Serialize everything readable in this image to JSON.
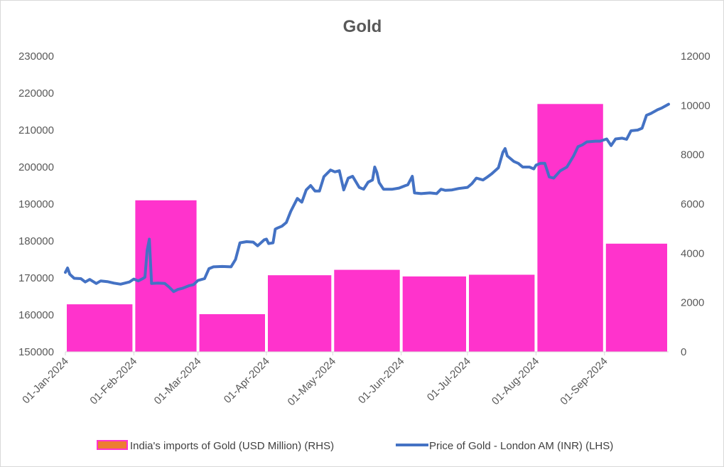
{
  "chart_data": {
    "type": "bar+line",
    "title": "Gold",
    "xlabel": "",
    "ylabel_left": "",
    "ylabel_right": "",
    "x_ticks": [
      "01-Jan-2024",
      "01-Feb-2024",
      "01-Mar-2024",
      "01-Apr-2024",
      "01-May-2024",
      "01-Jun-2024",
      "01-Jul-2024",
      "01-Aug-2024",
      "01-Sep-2024"
    ],
    "y_left": {
      "min": 150000,
      "max": 230000,
      "step": 10000,
      "ticks": [
        "150000",
        "160000",
        "170000",
        "180000",
        "190000",
        "200000",
        "210000",
        "220000",
        "230000"
      ]
    },
    "y_right": {
      "min": 0,
      "max": 12000,
      "step": 2000,
      "ticks": [
        "0",
        "2000",
        "4000",
        "6000",
        "8000",
        "10000",
        "12000"
      ]
    },
    "grid": false,
    "legend_position": "bottom",
    "colors": {
      "bars": "#ff33cc",
      "line": "#4472c4",
      "legend_bar_fill": "#ed7d31",
      "axis": "#d9d9d9"
    },
    "bar_series": {
      "name": "India's imports of Gold (USD Million) (RHS)",
      "axis": "right",
      "categories": [
        "Jan-2024",
        "Feb-2024",
        "Mar-2024",
        "Apr-2024",
        "May-2024",
        "Jun-2024",
        "Jul-2024",
        "Aug-2024",
        "Sep-2024"
      ],
      "values": [
        1930,
        6150,
        1530,
        3110,
        3330,
        3060,
        3130,
        10060,
        4390
      ]
    },
    "line_series": {
      "name": "Price of Gold - London AM (INR) (LHS)",
      "axis": "left",
      "points": [
        [
          "2024-01-01",
          171500
        ],
        [
          "2024-01-02",
          172700
        ],
        [
          "2024-01-03",
          171000
        ],
        [
          "2024-01-05",
          169900
        ],
        [
          "2024-01-08",
          169800
        ],
        [
          "2024-01-10",
          168900
        ],
        [
          "2024-01-12",
          169600
        ],
        [
          "2024-01-15",
          168500
        ],
        [
          "2024-01-17",
          169200
        ],
        [
          "2024-01-20",
          169000
        ],
        [
          "2024-01-23",
          168600
        ],
        [
          "2024-01-26",
          168300
        ],
        [
          "2024-01-30",
          168900
        ],
        [
          "2024-02-01",
          169700
        ],
        [
          "2024-02-03",
          169200
        ],
        [
          "2024-02-05",
          169800
        ],
        [
          "2024-02-06",
          170200
        ],
        [
          "2024-02-07",
          177500
        ],
        [
          "2024-02-08",
          180500
        ],
        [
          "2024-02-09",
          168500
        ],
        [
          "2024-02-12",
          168600
        ],
        [
          "2024-02-15",
          168500
        ],
        [
          "2024-02-17",
          167500
        ],
        [
          "2024-02-19",
          166300
        ],
        [
          "2024-02-21",
          166900
        ],
        [
          "2024-02-23",
          167200
        ],
        [
          "2024-02-26",
          167900
        ],
        [
          "2024-02-28",
          168200
        ],
        [
          "2024-03-01",
          169300
        ],
        [
          "2024-03-04",
          169800
        ],
        [
          "2024-03-06",
          172500
        ],
        [
          "2024-03-08",
          173000
        ],
        [
          "2024-03-12",
          173100
        ],
        [
          "2024-03-16",
          173000
        ],
        [
          "2024-03-18",
          175000
        ],
        [
          "2024-03-20",
          179500
        ],
        [
          "2024-03-23",
          179800
        ],
        [
          "2024-03-26",
          179700
        ],
        [
          "2024-03-28",
          178700
        ],
        [
          "2024-03-31",
          180300
        ],
        [
          "2024-04-01",
          180500
        ],
        [
          "2024-04-02",
          179300
        ],
        [
          "2024-04-04",
          179500
        ],
        [
          "2024-04-05",
          183200
        ],
        [
          "2024-04-06",
          183500
        ],
        [
          "2024-04-08",
          184000
        ],
        [
          "2024-04-10",
          185000
        ],
        [
          "2024-04-12",
          188000
        ],
        [
          "2024-04-15",
          191500
        ],
        [
          "2024-04-17",
          190500
        ],
        [
          "2024-04-19",
          193800
        ],
        [
          "2024-04-21",
          195000
        ],
        [
          "2024-04-23",
          193500
        ],
        [
          "2024-04-25",
          193500
        ],
        [
          "2024-04-27",
          197400
        ],
        [
          "2024-04-30",
          199200
        ],
        [
          "2024-05-02",
          198700
        ],
        [
          "2024-05-04",
          199000
        ],
        [
          "2024-05-06",
          193800
        ],
        [
          "2024-05-08",
          197000
        ],
        [
          "2024-05-10",
          197500
        ],
        [
          "2024-05-13",
          194500
        ],
        [
          "2024-05-15",
          194000
        ],
        [
          "2024-05-17",
          195900
        ],
        [
          "2024-05-19",
          196500
        ],
        [
          "2024-05-20",
          200000
        ],
        [
          "2024-05-21",
          198500
        ],
        [
          "2024-05-22",
          195800
        ],
        [
          "2024-05-24",
          194000
        ],
        [
          "2024-05-28",
          194000
        ],
        [
          "2024-05-31",
          194300
        ],
        [
          "2024-06-03",
          195000
        ],
        [
          "2024-06-04",
          195200
        ],
        [
          "2024-06-06",
          197500
        ],
        [
          "2024-06-07",
          193000
        ],
        [
          "2024-06-10",
          192800
        ],
        [
          "2024-06-14",
          193000
        ],
        [
          "2024-06-17",
          192800
        ],
        [
          "2024-06-19",
          194000
        ],
        [
          "2024-06-21",
          193700
        ],
        [
          "2024-06-24",
          193800
        ],
        [
          "2024-06-27",
          194200
        ],
        [
          "2024-07-01",
          194500
        ],
        [
          "2024-07-03",
          195500
        ],
        [
          "2024-07-05",
          197000
        ],
        [
          "2024-07-08",
          196500
        ],
        [
          "2024-07-10",
          197300
        ],
        [
          "2024-07-12",
          198200
        ],
        [
          "2024-07-15",
          199800
        ],
        [
          "2024-07-17",
          204000
        ],
        [
          "2024-07-18",
          205000
        ],
        [
          "2024-07-19",
          203000
        ],
        [
          "2024-07-22",
          201500
        ],
        [
          "2024-07-24",
          201000
        ],
        [
          "2024-07-26",
          200000
        ],
        [
          "2024-07-29",
          200000
        ],
        [
          "2024-07-31",
          199500
        ],
        [
          "2024-08-01",
          200500
        ],
        [
          "2024-08-03",
          201000
        ],
        [
          "2024-08-05",
          201000
        ],
        [
          "2024-08-07",
          197300
        ],
        [
          "2024-08-09",
          197000
        ],
        [
          "2024-08-12",
          199000
        ],
        [
          "2024-08-15",
          200000
        ],
        [
          "2024-08-18",
          203000
        ],
        [
          "2024-08-20",
          205500
        ],
        [
          "2024-08-22",
          206000
        ],
        [
          "2024-08-24",
          206800
        ],
        [
          "2024-08-26",
          206900
        ],
        [
          "2024-08-28",
          207000
        ],
        [
          "2024-08-30",
          207000
        ],
        [
          "2024-09-02",
          207600
        ],
        [
          "2024-09-04",
          205800
        ],
        [
          "2024-09-06",
          207600
        ],
        [
          "2024-09-09",
          207800
        ],
        [
          "2024-09-11",
          207500
        ],
        [
          "2024-09-13",
          209800
        ],
        [
          "2024-09-16",
          210000
        ],
        [
          "2024-09-18",
          210500
        ],
        [
          "2024-09-20",
          214000
        ],
        [
          "2024-09-22",
          214500
        ],
        [
          "2024-09-25",
          215500
        ],
        [
          "2024-09-27",
          216000
        ],
        [
          "2024-09-30",
          217000
        ]
      ]
    }
  }
}
